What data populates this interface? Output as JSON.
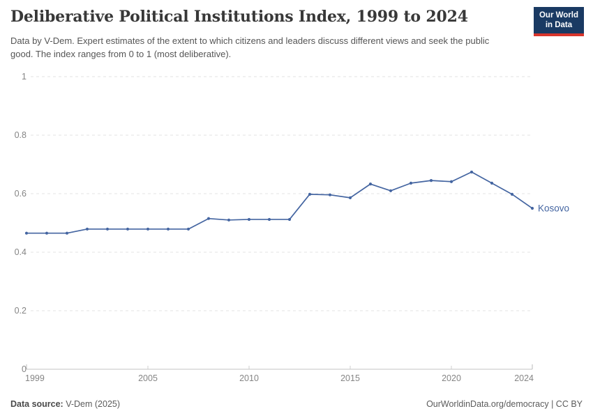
{
  "header": {
    "title": "Deliberative Political Institutions Index, 1999 to 2024",
    "logo": {
      "line1": "Our World",
      "line2": "in Data"
    }
  },
  "subtitle": "Data by V-Dem. Expert estimates of the extent to which citizens and leaders discuss different views and seek the public good. The index ranges from 0 to 1 (most deliberative).",
  "chart_data": {
    "type": "line",
    "title": "Deliberative Political Institutions Index, 1999 to 2024",
    "xlabel": "",
    "ylabel": "",
    "xlim": [
      1999,
      2024
    ],
    "ylim": [
      0,
      1
    ],
    "grid": "horizontal-dashed",
    "legend": "end-of-line-label",
    "x": [
      1999,
      2000,
      2001,
      2002,
      2003,
      2004,
      2005,
      2006,
      2007,
      2008,
      2009,
      2010,
      2011,
      2012,
      2013,
      2014,
      2015,
      2016,
      2017,
      2018,
      2019,
      2020,
      2021,
      2022,
      2023,
      2024
    ],
    "series": [
      {
        "name": "Kosovo",
        "color": "#4465a1",
        "values": [
          0.465,
          0.465,
          0.465,
          0.479,
          0.479,
          0.479,
          0.479,
          0.479,
          0.479,
          0.515,
          0.51,
          0.512,
          0.512,
          0.512,
          0.598,
          0.596,
          0.586,
          0.633,
          0.61,
          0.636,
          0.645,
          0.641,
          0.674,
          0.636,
          0.598,
          0.55
        ]
      }
    ],
    "yticks": {
      "values": [
        0,
        0.2,
        0.4,
        0.6,
        0.8,
        1
      ],
      "labels": [
        "0",
        "0.2",
        "0.4",
        "0.6",
        "0.8",
        "1"
      ]
    },
    "xticks": {
      "values": [
        1999,
        2005,
        2010,
        2015,
        2020,
        2024
      ],
      "labels": [
        "1999",
        "2005",
        "2010",
        "2015",
        "2020",
        "2024"
      ]
    }
  },
  "footer": {
    "source_label": "Data source:",
    "source_value": " V-Dem (2025)",
    "link": "OurWorldinData.org/democracy",
    "separator": " | ",
    "license": "CC BY"
  },
  "colors": {
    "line": "#4465a1",
    "logo_bg": "#1a3a63",
    "logo_accent": "#d8352c",
    "grid": "#e3e3e3",
    "axis_line": "#c3c3c3",
    "axis_text": "#858585",
    "title_text": "#383838",
    "subtitle_text": "#555555",
    "footer_text": "#5b5b5b"
  }
}
